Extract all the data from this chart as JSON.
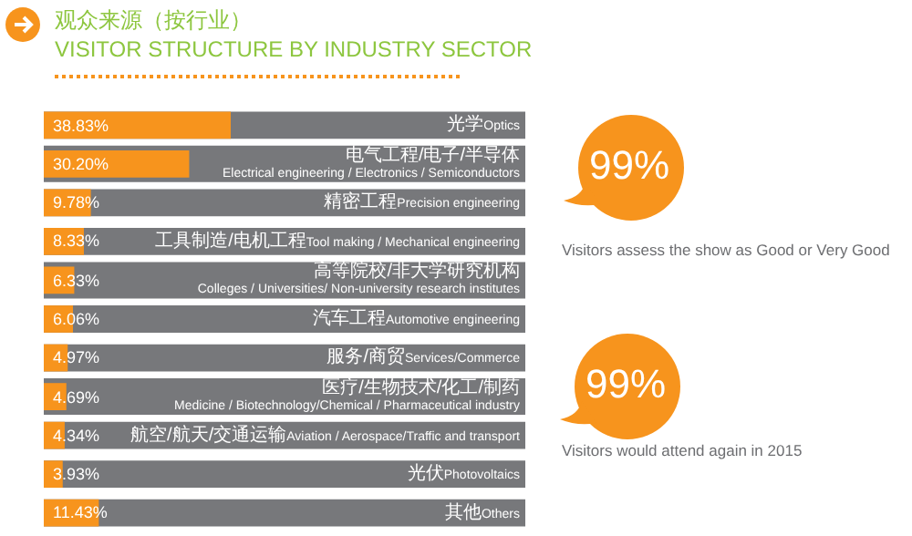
{
  "chart_data": {
    "type": "bar",
    "orientation": "horizontal",
    "title": "观众来源（按行业）",
    "subtitle": "VISITOR STRUCTURE BY INDUSTRY SECTOR",
    "categories": [
      "光学Optics",
      "电气工程/电子/半导体\nElectrical engineering / Electronics / Semiconductors",
      "精密工程Precision engineering",
      "工具制造/电机工程Tool making / Mechanical engineering",
      "高等院校/非大学研究机构\nColleges / Universities/ Non-university research institutes",
      "汽车工程Automotive engineering",
      "服务/商贸Services/Commerce",
      "医疗/生物技术/化工/制药\nMedicine / Biotechnology/Chemical / Pharmaceutical industry",
      "航空/航天/交通运输Aviation / Aerospace/Traffic and transport",
      "光伏Photovoltaics",
      "其他Others"
    ],
    "values": [
      38.83,
      30.2,
      9.78,
      8.33,
      6.33,
      6.06,
      4.97,
      4.69,
      4.34,
      3.93,
      11.43
    ],
    "value_labels": [
      "38.83%",
      "30.20%",
      "9.78%",
      "8.33%",
      "6.33%",
      "6.06%",
      "4.97%",
      "4.69%",
      "4.34%",
      "3.93%",
      "11.43%"
    ],
    "color": "#f7941d",
    "xlim": [
      0,
      100
    ],
    "tick_labels": "y",
    "grid": false,
    "annotations": [
      "99%",
      "Visitors assess the show as Good or Very Good",
      "99%",
      "Visitors would attend again in 2015"
    ]
  }
}
